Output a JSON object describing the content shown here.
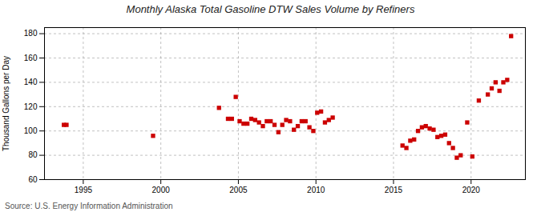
{
  "chart_data": {
    "type": "scatter",
    "title": "Monthly Alaska Total Gasoline DTW Sales Volume by Refiners",
    "ylabel": "Thousand Gallons per Day",
    "annotations": [
      "Source: U.S. Energy Information Administration"
    ],
    "x": [
      1993.75,
      1993.92,
      1999.5,
      2003.75,
      2004.33,
      2004.58,
      2004.83,
      2005.08,
      2005.33,
      2005.58,
      2005.83,
      2006.08,
      2006.33,
      2006.58,
      2006.83,
      2007.08,
      2007.33,
      2007.58,
      2007.83,
      2008.08,
      2008.33,
      2008.58,
      2008.83,
      2009.08,
      2009.33,
      2009.58,
      2009.83,
      2010.08,
      2010.33,
      2010.58,
      2010.83,
      2011.08,
      2015.58,
      2015.83,
      2016.08,
      2016.33,
      2016.58,
      2016.83,
      2017.08,
      2017.33,
      2017.58,
      2017.83,
      2018.08,
      2018.33,
      2018.58,
      2018.83,
      2019.08,
      2019.33,
      2019.75,
      2020.08,
      2020.5,
      2021.08,
      2021.33,
      2021.58,
      2021.83,
      2022.08,
      2022.33,
      2022.58
    ],
    "values": [
      105,
      105,
      96,
      119,
      110,
      110,
      128,
      108,
      106,
      106,
      110,
      109,
      107,
      104,
      108,
      108,
      105,
      99,
      105,
      109,
      108,
      101,
      104,
      108,
      108,
      103,
      100,
      115,
      116,
      107,
      109,
      111,
      88,
      86,
      92,
      93,
      100,
      103,
      104,
      102,
      101,
      95,
      96,
      97,
      90,
      86,
      78,
      80,
      107,
      79,
      125,
      130,
      135,
      140,
      133,
      140,
      142,
      178
    ],
    "color": "#cc0000",
    "marker": "square",
    "xlim": [
      1992.5,
      2023.5
    ],
    "ylim": [
      60,
      185
    ],
    "xticks": [
      1995,
      2000,
      2005,
      2010,
      2015,
      2020
    ],
    "yticks": [
      60,
      80,
      100,
      120,
      140,
      160,
      180
    ],
    "grid": true
  }
}
